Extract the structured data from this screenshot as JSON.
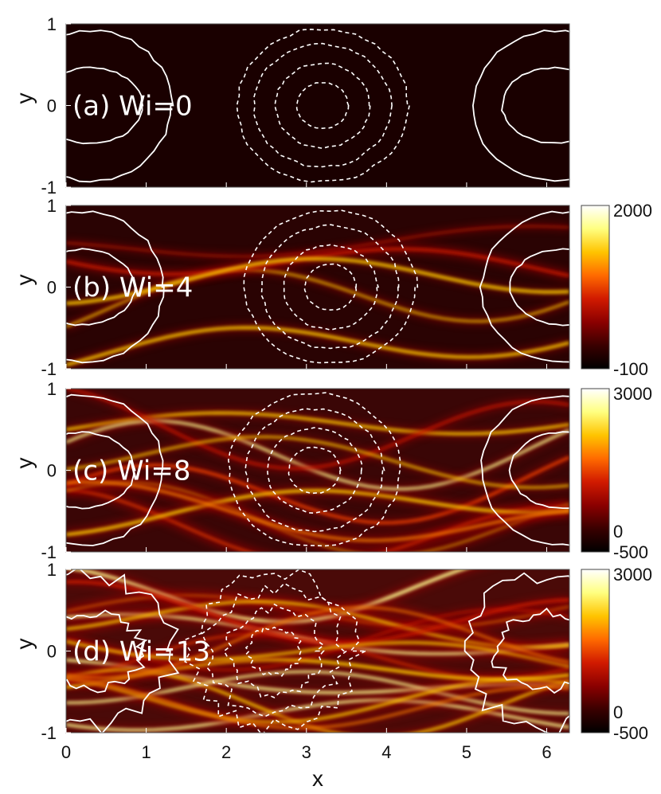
{
  "chart_data": {
    "type": "heatmap",
    "xlabel": "x",
    "ylabel": "y",
    "xlim": [
      0,
      6.2832
    ],
    "ylim": [
      -1,
      1
    ],
    "x_ticks": [
      "0",
      "1",
      "2",
      "3",
      "4",
      "5",
      "6"
    ],
    "y_ticks": [
      "-1",
      "0",
      "1"
    ],
    "colormap": [
      "#000000",
      "#3a0000",
      "#8b0000",
      "#d11a00",
      "#ff6a00",
      "#ffc400",
      "#ffff80",
      "#ffffff"
    ],
    "contour_color": "#ffffff",
    "panels": [
      {
        "label": "(a) Wi=0",
        "colorbar": null,
        "streak_count": 0,
        "contours_solid_centers": [
          0.3,
          6.1
        ],
        "contours_dashed_center": 3.2
      },
      {
        "label": "(b) Wi=4",
        "colorbar": {
          "max": "2000",
          "min": "-100",
          "mid": ""
        },
        "streak_count": 5,
        "contours_solid_centers": [
          0.2,
          6.2
        ],
        "contours_dashed_center": 3.3
      },
      {
        "label": "(c) Wi=8",
        "colorbar": {
          "max": "3000",
          "min": "-500",
          "mid": "0"
        },
        "streak_count": 9,
        "contours_solid_centers": [
          0.2,
          6.2
        ],
        "contours_dashed_center": 3.1
      },
      {
        "label": "(d) Wi=13",
        "colorbar": {
          "max": "3000",
          "min": "-500",
          "mid": "0"
        },
        "streak_count": 16,
        "contours_solid_centers": [
          0.3,
          6.0
        ],
        "contours_dashed_center": 2.6
      }
    ]
  }
}
